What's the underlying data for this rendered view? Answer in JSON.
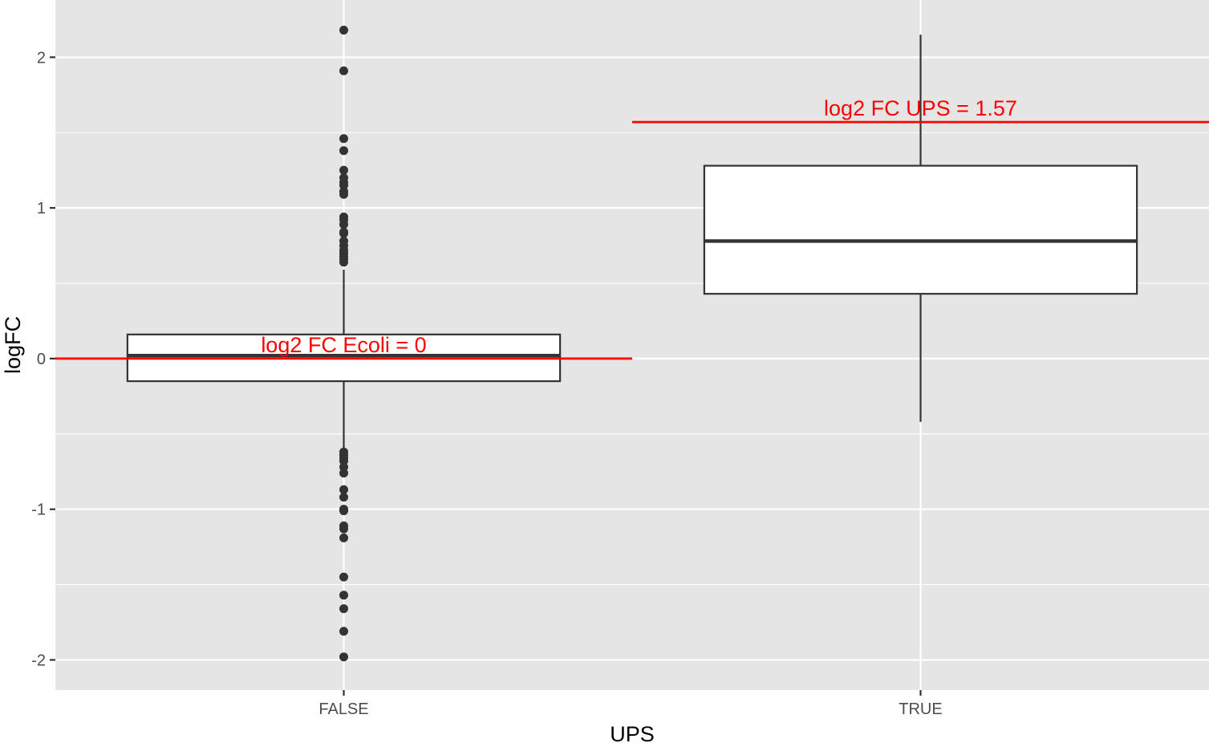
{
  "chart_data": {
    "type": "box",
    "xlabel": "UPS",
    "ylabel": "logFC",
    "ylim": [
      -2.2,
      2.38
    ],
    "y_ticks": [
      {
        "value": -2,
        "label": "-2"
      },
      {
        "value": -1,
        "label": "-1"
      },
      {
        "value": 0,
        "label": "0"
      },
      {
        "value": 1,
        "label": "1"
      },
      {
        "value": 2,
        "label": "2"
      }
    ],
    "y_minor_ticks": [
      -1.5,
      -0.5,
      0.5,
      1.5
    ],
    "categories": [
      "FALSE",
      "TRUE"
    ],
    "boxes": [
      {
        "category": "FALSE",
        "q1": -0.15,
        "median": 0.02,
        "q3": 0.16,
        "whisker_low": -0.6,
        "whisker_high": 0.59,
        "outliers": [
          2.18,
          1.91,
          1.46,
          1.38,
          1.25,
          1.2,
          1.17,
          1.15,
          1.11,
          1.09,
          0.94,
          0.92,
          0.89,
          0.84,
          0.83,
          0.78,
          0.75,
          0.72,
          0.7,
          0.68,
          0.66,
          0.64,
          -0.62,
          -0.64,
          -0.66,
          -0.68,
          -0.72,
          -0.76,
          -0.87,
          -0.92,
          -1.0,
          -1.01,
          -1.11,
          -1.13,
          -1.19,
          -1.45,
          -1.57,
          -1.66,
          -1.81,
          -1.98
        ]
      },
      {
        "category": "TRUE",
        "q1": 0.43,
        "median": 0.78,
        "q3": 1.28,
        "whisker_low": -0.42,
        "whisker_high": 2.15,
        "outliers": []
      }
    ],
    "reference_lines": [
      {
        "category": "FALSE",
        "value": 0,
        "label": "log2 FC Ecoli = 0",
        "color": "#ff0000"
      },
      {
        "category": "TRUE",
        "value": 1.57,
        "label": "log2 FC UPS = 1.57",
        "color": "#ff0000"
      }
    ],
    "colors": {
      "panel_background": "#e5e5e5",
      "grid": "#ffffff",
      "box_fill": "#ffffff",
      "box_stroke": "#333333",
      "outlier": "#333333"
    },
    "grid": true,
    "legend": "none"
  }
}
